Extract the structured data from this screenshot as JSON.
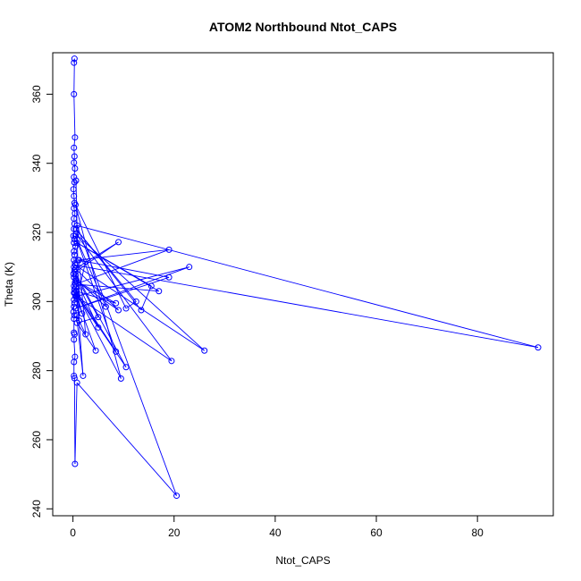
{
  "chart_data": {
    "type": "line",
    "title": "ATOM2 Northbound Ntot_CAPS",
    "xlabel": "Ntot_CAPS",
    "ylabel": "Theta (K)",
    "xlim": [
      -4,
      95
    ],
    "ylim": [
      238,
      372
    ],
    "xticks": [
      0,
      20,
      40,
      60,
      80
    ],
    "yticks": [
      240,
      260,
      280,
      300,
      320,
      340,
      360
    ],
    "grid": false,
    "legend": "none",
    "series_color": "#0000ff",
    "markers": "open-circle",
    "points": [
      [
        0.2,
        369.1
      ],
      [
        0.3,
        370.3
      ],
      [
        0.2,
        360.0
      ],
      [
        0.4,
        347.5
      ],
      [
        0.2,
        344.5
      ],
      [
        0.3,
        342.0
      ],
      [
        0.2,
        340.2
      ],
      [
        0.4,
        338.5
      ],
      [
        0.2,
        336.0
      ],
      [
        0.3,
        334.5
      ],
      [
        0.1,
        332.5
      ],
      [
        0.2,
        330.5
      ],
      [
        0.3,
        328.5
      ],
      [
        0.2,
        327.0
      ],
      [
        0.4,
        325.5
      ],
      [
        0.2,
        324.0
      ],
      [
        0.3,
        322.5
      ],
      [
        0.2,
        321.0
      ],
      [
        0.1,
        319.0
      ],
      [
        0.3,
        318.0
      ],
      [
        0.2,
        317.0
      ],
      [
        0.5,
        316.0
      ],
      [
        0.2,
        314.5
      ],
      [
        0.3,
        313.5
      ],
      [
        0.2,
        312.0
      ],
      [
        0.4,
        311.0
      ],
      [
        0.2,
        310.0
      ],
      [
        0.3,
        309.0
      ],
      [
        0.1,
        308.0
      ],
      [
        0.2,
        307.0
      ],
      [
        0.4,
        305.5
      ],
      [
        0.2,
        304.5
      ],
      [
        0.3,
        303.5
      ],
      [
        0.2,
        302.5
      ],
      [
        0.5,
        301.5
      ],
      [
        0.2,
        300.5
      ],
      [
        0.3,
        299.5
      ],
      [
        0.2,
        298.5
      ],
      [
        0.1,
        297.0
      ],
      [
        0.3,
        296.0
      ],
      [
        0.2,
        295.0
      ],
      [
        0.2,
        291.0
      ],
      [
        0.3,
        290.5
      ],
      [
        0.2,
        289.0
      ],
      [
        0.4,
        284.0
      ],
      [
        0.2,
        282.5
      ],
      [
        0.2,
        278.5
      ],
      [
        0.3,
        277.8
      ],
      [
        0.4,
        253.0
      ],
      [
        0.8,
        276.5
      ],
      [
        20.5,
        243.8
      ],
      [
        0.8,
        322.0
      ],
      [
        92.0,
        286.7
      ],
      [
        0.5,
        310.5
      ],
      [
        26.0,
        285.8
      ],
      [
        0.6,
        319.5
      ],
      [
        19.5,
        282.8
      ],
      [
        0.7,
        301.5
      ],
      [
        23.0,
        310.0
      ],
      [
        0.5,
        298.0
      ],
      [
        19.0,
        307.0
      ],
      [
        1.0,
        312.0
      ],
      [
        19.0,
        315.0
      ],
      [
        0.5,
        305.0
      ],
      [
        17.0,
        303.0
      ],
      [
        0.8,
        317.0
      ],
      [
        15.5,
        304.5
      ],
      [
        13.5,
        297.5
      ],
      [
        0.6,
        321.0
      ],
      [
        12.5,
        300.0
      ],
      [
        10.5,
        298.0
      ],
      [
        0.5,
        328.0
      ],
      [
        9.5,
        277.7
      ],
      [
        0.8,
        302.0
      ],
      [
        10.5,
        281.0
      ],
      [
        0.4,
        308.5
      ],
      [
        9.0,
        317.2
      ],
      [
        0.5,
        309.5
      ],
      [
        9.0,
        297.5
      ],
      [
        0.6,
        306.0
      ],
      [
        8.5,
        299.5
      ],
      [
        0.7,
        303.0
      ],
      [
        8.5,
        285.5
      ],
      [
        0.5,
        319.0
      ],
      [
        6.5,
        298.5
      ],
      [
        0.6,
        306.5
      ],
      [
        5.0,
        292.5
      ],
      [
        0.4,
        302.5
      ],
      [
        4.5,
        285.8
      ],
      [
        0.8,
        293.8
      ],
      [
        5.0,
        295.5
      ],
      [
        0.5,
        307.5
      ],
      [
        2.0,
        278.5
      ],
      [
        0.7,
        296.0
      ],
      [
        2.5,
        290.5
      ],
      [
        1.2,
        312.0
      ],
      [
        2.5,
        311.5
      ],
      [
        0.8,
        301.0
      ],
      [
        1.8,
        296.5
      ],
      [
        0.5,
        304.0
      ],
      [
        1.2,
        294.5
      ],
      [
        0.6,
        335.0
      ]
    ]
  }
}
